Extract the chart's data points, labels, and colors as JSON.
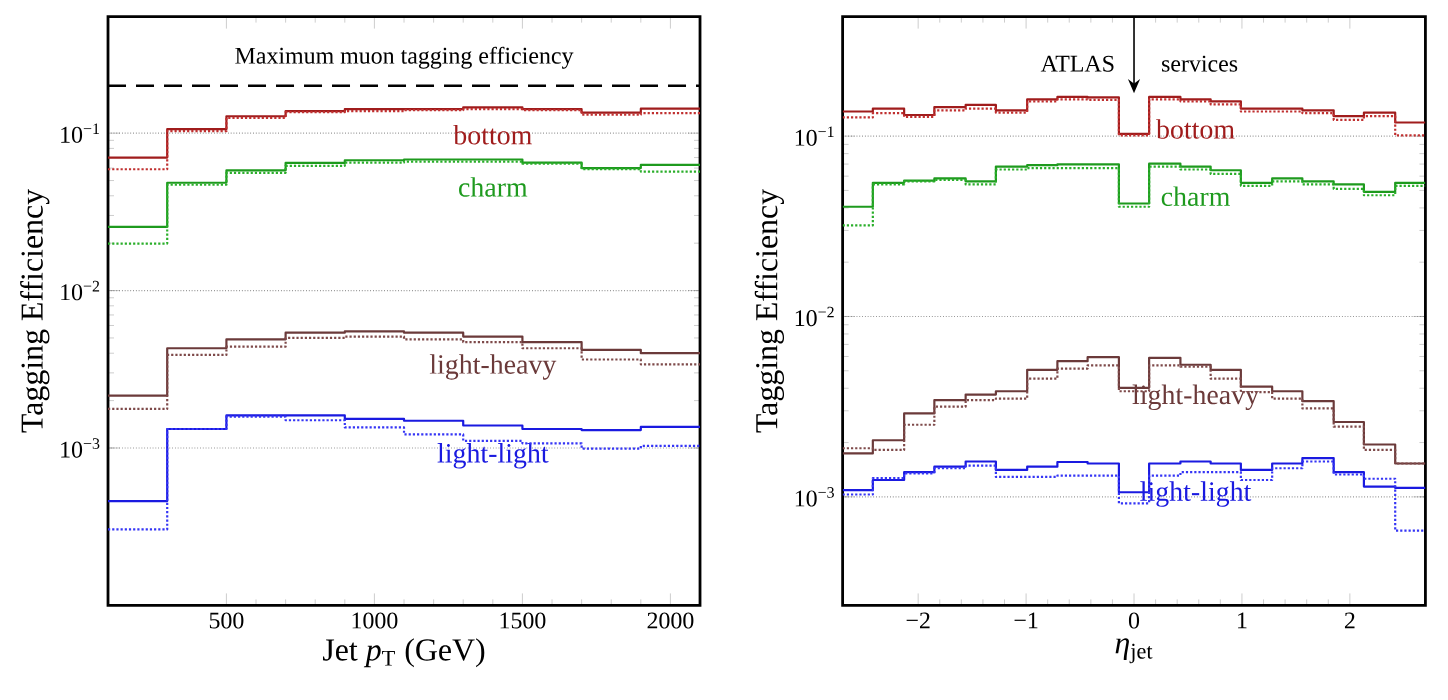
{
  "chart_data": [
    {
      "type": "histogram",
      "xlabel": "Jet *p*$_{T}$ (GeV)",
      "ylabel": "Tagging Efficiency",
      "log": "y",
      "grid": "y",
      "xlim": [
        100,
        2100
      ],
      "xticks": [
        500,
        1000,
        1500,
        2000
      ],
      "ylim": [
        0.0001,
        0.55
      ],
      "yticks": [
        {
          "value": 0.001,
          "label": "10$^{−3}$"
        },
        {
          "value": 0.01,
          "label": "10$^{−2}$"
        },
        {
          "value": 0.1,
          "label": "10$^{−1}$"
        }
      ],
      "bins": [
        100,
        300,
        500,
        700,
        900,
        1100,
        1300,
        1500,
        1700,
        1900,
        2100
      ],
      "series": [
        {
          "name": "bottom",
          "color": "#a01c1c",
          "line_style": "solid",
          "values": [
            0.07,
            0.106,
            0.128,
            0.138,
            0.142,
            0.142,
            0.146,
            0.142,
            0.135,
            0.143
          ]
        },
        {
          "color": "#c03030",
          "line_style": "dotted",
          "values": [
            0.059,
            0.103,
            0.125,
            0.136,
            0.138,
            0.14,
            0.142,
            0.14,
            0.131,
            0.134
          ]
        },
        {
          "name": "charm",
          "color": "#1e9a1e",
          "line_style": "solid",
          "values": [
            0.0254,
            0.0484,
            0.058,
            0.0647,
            0.0673,
            0.068,
            0.068,
            0.065,
            0.06,
            0.0628
          ]
        },
        {
          "color": "#2aae2a",
          "line_style": "dotted",
          "values": [
            0.0199,
            0.047,
            0.056,
            0.062,
            0.065,
            0.066,
            0.066,
            0.064,
            0.059,
            0.057
          ]
        },
        {
          "name": "light-heavy",
          "color": "#6b3a3a",
          "line_style": "solid",
          "values": [
            0.00215,
            0.0043,
            0.0049,
            0.0054,
            0.0055,
            0.0054,
            0.0051,
            0.0047,
            0.0042,
            0.004
          ]
        },
        {
          "color": "#7e4a4a",
          "line_style": "dotted",
          "values": [
            0.00177,
            0.0039,
            0.0044,
            0.005,
            0.0051,
            0.0049,
            0.0047,
            0.0043,
            0.00365,
            0.0034
          ]
        },
        {
          "name": "light-light",
          "color": "#1a1ae0",
          "line_style": "solid",
          "values": [
            0.00046,
            0.00132,
            0.00161,
            0.00161,
            0.00153,
            0.00149,
            0.00139,
            0.00132,
            0.0013,
            0.00136
          ]
        },
        {
          "color": "#3535f5",
          "line_style": "dotted",
          "values": [
            0.000304,
            0.00132,
            0.00158,
            0.0015,
            0.00135,
            0.00122,
            0.00111,
            0.00107,
            0.00099,
            0.00103
          ]
        }
      ],
      "ref_lines": [
        {
          "axis": "y",
          "value": 0.2,
          "label": "Maximum muon tagging efficiency",
          "color": "#000000",
          "line_style": "dashed"
        }
      ]
    },
    {
      "type": "histogram",
      "xlabel": "*η*$_{jet}$",
      "ylabel": "Tagging Efficiency",
      "log": "y",
      "grid": "y",
      "xlim": [
        -2.7,
        2.7
      ],
      "xticks": [
        {
          "value": -2,
          "label": "−2"
        },
        {
          "value": -1,
          "label": "−1"
        },
        0,
        1,
        2
      ],
      "ylim": [
        0.00025,
        0.46
      ],
      "yticks": [
        {
          "value": 0.001,
          "label": "10$^{−3}$"
        },
        {
          "value": 0.01,
          "label": "10$^{−2}$"
        },
        {
          "value": 0.1,
          "label": "10$^{−1}$"
        }
      ],
      "bins": [
        -2.7,
        -2.42,
        -2.13,
        -1.85,
        -1.56,
        -1.28,
        -0.99,
        -0.71,
        -0.43,
        -0.14,
        0.14,
        0.43,
        0.71,
        0.99,
        1.28,
        1.56,
        1.85,
        2.13,
        2.42,
        2.7
      ],
      "series": [
        {
          "name": "bottom",
          "color": "#a01c1c",
          "line_style": "solid",
          "values": [
            0.137,
            0.142,
            0.131,
            0.145,
            0.149,
            0.139,
            0.16,
            0.165,
            0.164,
            0.103,
            0.165,
            0.16,
            0.156,
            0.142,
            0.142,
            0.139,
            0.129,
            0.135,
            0.119
          ]
        },
        {
          "color": "#c03030",
          "line_style": "dotted",
          "values": [
            0.127,
            0.134,
            0.128,
            0.139,
            0.142,
            0.135,
            0.156,
            0.16,
            0.159,
            0.101,
            0.16,
            0.156,
            0.15,
            0.137,
            0.137,
            0.134,
            0.123,
            0.129,
            0.101
          ]
        },
        {
          "name": "charm",
          "color": "#1e9a1e",
          "line_style": "solid",
          "values": [
            0.0406,
            0.0551,
            0.0566,
            0.0583,
            0.0561,
            0.0678,
            0.069,
            0.0697,
            0.0697,
            0.0423,
            0.0704,
            0.0678,
            0.0647,
            0.0551,
            0.0583,
            0.0561,
            0.054,
            0.0491,
            0.0551
          ]
        },
        {
          "color": "#2aae2a",
          "line_style": "dotted",
          "values": [
            0.032,
            0.054,
            0.0561,
            0.0572,
            0.054,
            0.0653,
            0.0665,
            0.0665,
            0.0665,
            0.0406,
            0.0678,
            0.0653,
            0.0617,
            0.053,
            0.0561,
            0.054,
            0.051,
            0.047,
            0.053
          ]
        },
        {
          "name": "light-heavy",
          "color": "#6b3a3a",
          "line_style": "solid",
          "values": [
            0.00174,
            0.00206,
            0.0029,
            0.00344,
            0.00369,
            0.00385,
            0.00506,
            0.00565,
            0.00595,
            0.00402,
            0.0059,
            0.0054,
            0.00506,
            0.00408,
            0.00385,
            0.00339,
            0.0026,
            0.00195,
            0.00153
          ]
        },
        {
          "color": "#7e4a4a",
          "line_style": "dotted",
          "values": [
            0.00186,
            0.00182,
            0.00251,
            0.00316,
            0.00344,
            0.0035,
            0.00452,
            0.00514,
            0.00536,
            0.00385,
            0.00536,
            0.00527,
            0.00452,
            0.00381,
            0.0035,
            0.00309,
            0.00245,
            0.00182,
            0.00153
          ]
        },
        {
          "name": "light-light",
          "color": "#1a1ae0",
          "line_style": "solid",
          "values": [
            0.00109,
            0.00124,
            0.00137,
            0.00147,
            0.00157,
            0.00141,
            0.00147,
            0.00156,
            0.00153,
            0.00106,
            0.00153,
            0.00157,
            0.00153,
            0.00141,
            0.00153,
            0.00164,
            0.00137,
            0.00114,
            0.00112
          ]
        },
        {
          "color": "#3535f5",
          "line_style": "dotted",
          "values": [
            0.00103,
            0.00127,
            0.00135,
            0.00144,
            0.00149,
            0.00129,
            0.00129,
            0.00131,
            0.00131,
            0.00092,
            0.00131,
            0.00137,
            0.00137,
            0.00124,
            0.00144,
            0.00157,
            0.00133,
            0.00126,
            0.00065
          ]
        }
      ],
      "annotations": [
        "ATLAS",
        "services"
      ]
    }
  ]
}
